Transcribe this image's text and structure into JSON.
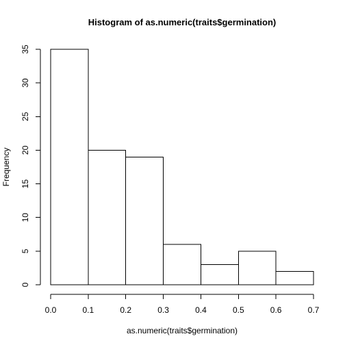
{
  "chart_data": {
    "type": "bar",
    "title": "Histogram of as.numeric(traits$germination)",
    "xlabel": "as.numeric(traits$germination)",
    "ylabel": "Frequency",
    "bins": [
      {
        "x0": 0.0,
        "x1": 0.1,
        "count": 35
      },
      {
        "x0": 0.1,
        "x1": 0.2,
        "count": 20
      },
      {
        "x0": 0.2,
        "x1": 0.3,
        "count": 19
      },
      {
        "x0": 0.3,
        "x1": 0.4,
        "count": 6
      },
      {
        "x0": 0.4,
        "x1": 0.5,
        "count": 3
      },
      {
        "x0": 0.5,
        "x1": 0.6,
        "count": 5
      },
      {
        "x0": 0.6,
        "x1": 0.7,
        "count": 2
      }
    ],
    "xticks": [
      "0.0",
      "0.1",
      "0.2",
      "0.3",
      "0.4",
      "0.5",
      "0.6",
      "0.7"
    ],
    "yticks": [
      "0",
      "5",
      "10",
      "15",
      "20",
      "25",
      "30",
      "35"
    ],
    "xlim": [
      0.0,
      0.7
    ],
    "ylim": [
      0,
      35
    ],
    "grid": false
  }
}
